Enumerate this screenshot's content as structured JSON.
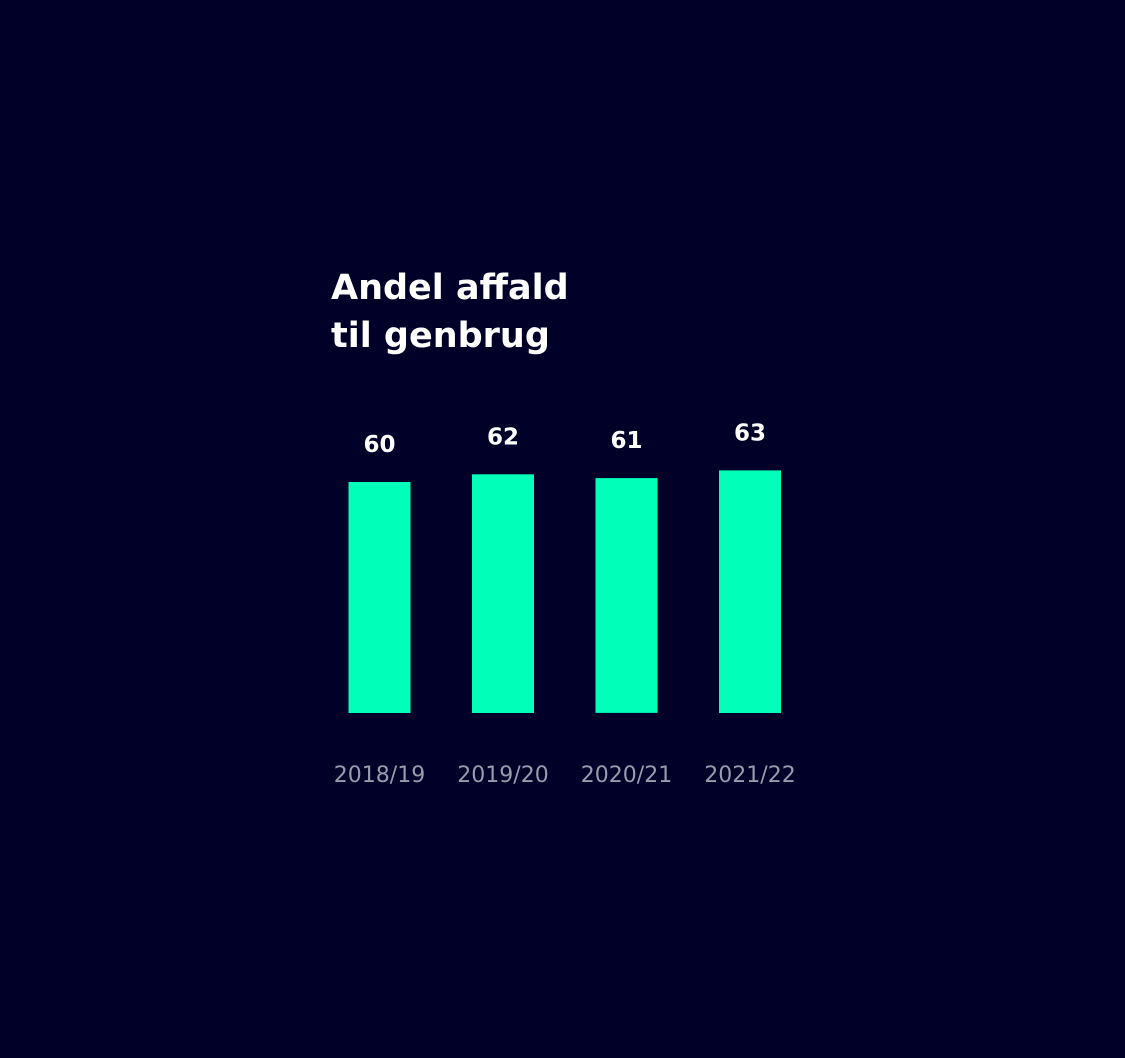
{
  "chart_data": {
    "type": "bar",
    "title": "Andel affald\ntil genbrug",
    "categories": [
      "2018/19",
      "2019/20",
      "2020/21",
      "2021/22"
    ],
    "values": [
      60,
      62,
      61,
      63
    ],
    "xlabel": "",
    "ylabel": "",
    "grid": false,
    "legend": "none"
  },
  "colors": {
    "background": "#000028",
    "bar": "#00ffb9",
    "title": "#ffffff",
    "value_label": "#ffffff",
    "tick_label": "#9a9aae"
  }
}
